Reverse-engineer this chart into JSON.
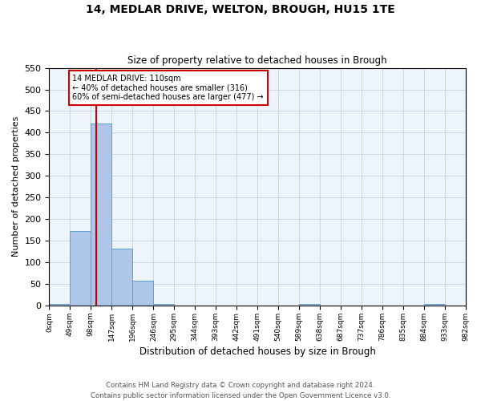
{
  "title": "14, MEDLAR DRIVE, WELTON, BROUGH, HU15 1TE",
  "subtitle": "Size of property relative to detached houses in Brough",
  "xlabel": "Distribution of detached houses by size in Brough",
  "ylabel": "Number of detached properties",
  "footnote1": "Contains HM Land Registry data © Crown copyright and database right 2024.",
  "footnote2": "Contains public sector information licensed under the Open Government Licence v3.0.",
  "annotation_line1": "14 MEDLAR DRIVE: 110sqm",
  "annotation_line2": "← 40% of detached houses are smaller (316)",
  "annotation_line3": "60% of semi-detached houses are larger (477) →",
  "bar_edges": [
    0,
    49,
    98,
    147,
    196,
    246,
    295,
    344,
    393,
    442,
    491,
    540,
    589,
    638,
    687,
    737,
    786,
    835,
    884,
    933,
    982
  ],
  "bar_heights": [
    3,
    172,
    421,
    132,
    57,
    3,
    0,
    0,
    0,
    0,
    0,
    0,
    3,
    0,
    0,
    0,
    0,
    0,
    3,
    0,
    0
  ],
  "bar_color": "#aec6e8",
  "bar_edgecolor": "#5a9fd4",
  "property_line_x": 110,
  "ylim": [
    0,
    550
  ],
  "yticks": [
    0,
    50,
    100,
    150,
    200,
    250,
    300,
    350,
    400,
    450,
    500,
    550
  ],
  "xtick_labels": [
    "0sqm",
    "49sqm",
    "98sqm",
    "147sqm",
    "196sqm",
    "246sqm",
    "295sqm",
    "344sqm",
    "393sqm",
    "442sqm",
    "491sqm",
    "540sqm",
    "589sqm",
    "638sqm",
    "687sqm",
    "737sqm",
    "786sqm",
    "835sqm",
    "884sqm",
    "933sqm",
    "982sqm"
  ],
  "annotation_box_color": "#cc0000",
  "grid_color": "#c8d8e8",
  "background_color": "#eef4fb",
  "fig_width": 6.0,
  "fig_height": 5.0,
  "dpi": 100
}
